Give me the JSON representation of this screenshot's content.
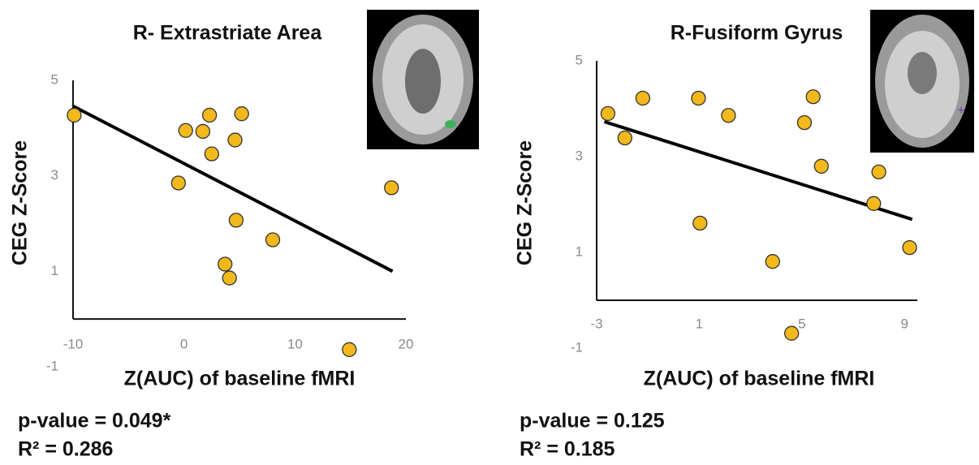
{
  "chart_data": [
    {
      "type": "scatter",
      "title": "R- Extrastriate Area",
      "x_label": "Z(AUC) of baseline fMRI",
      "y_label": "CEG Z-Score",
      "x": [
        -9.9,
        0.15,
        2.3,
        1.7,
        5.2,
        4.6,
        2.5,
        -0.5,
        18.7,
        4.7,
        8.0,
        3.7,
        4.1,
        14.9
      ],
      "values": [
        4.27,
        3.95,
        4.27,
        3.93,
        4.3,
        3.75,
        3.46,
        2.85,
        2.75,
        2.07,
        1.66,
        1.15,
        0.86,
        -0.64
      ],
      "color": "#f2b81c",
      "trendline": {
        "x": [
          -10,
          18.8
        ],
        "values": [
          4.46,
          1.0
        ],
        "color": "#000000"
      },
      "xlim": [
        -10,
        20
      ],
      "xticks": [
        -10,
        0,
        10,
        20
      ],
      "ylim": [
        -1,
        5
      ],
      "yticks": [
        -1,
        1,
        3,
        5
      ],
      "annotations": [
        "p-value = 0.049*",
        "R² = 0.286"
      ]
    },
    {
      "type": "scatter",
      "title": "R-Fusiform Gyrus",
      "x_label": "Z(AUC) of baseline fMRI",
      "y_label": "CEG Z-Score",
      "x": [
        -2.56,
        -1.9,
        -1.2,
        0.97,
        2.14,
        5.44,
        5.1,
        5.76,
        8.0,
        7.8,
        9.2,
        1.03,
        3.86,
        4.6
      ],
      "values": [
        3.9,
        3.39,
        4.22,
        4.22,
        3.86,
        4.25,
        3.71,
        2.8,
        2.68,
        2.02,
        1.1,
        1.61,
        0.81,
        -0.69
      ],
      "color": "#f2b81c",
      "trendline": {
        "x": [
          -2.7,
          9.3
        ],
        "values": [
          3.73,
          1.69
        ],
        "color": "#000000"
      },
      "xlim": [
        -3,
        9.5
      ],
      "xticks": [
        -3,
        1,
        5,
        9
      ],
      "ylim": [
        -1,
        5
      ],
      "yticks": [
        -1,
        1,
        3,
        5
      ],
      "annotations": [
        "p-value = 0.125",
        "R² = 0.185"
      ]
    }
  ]
}
